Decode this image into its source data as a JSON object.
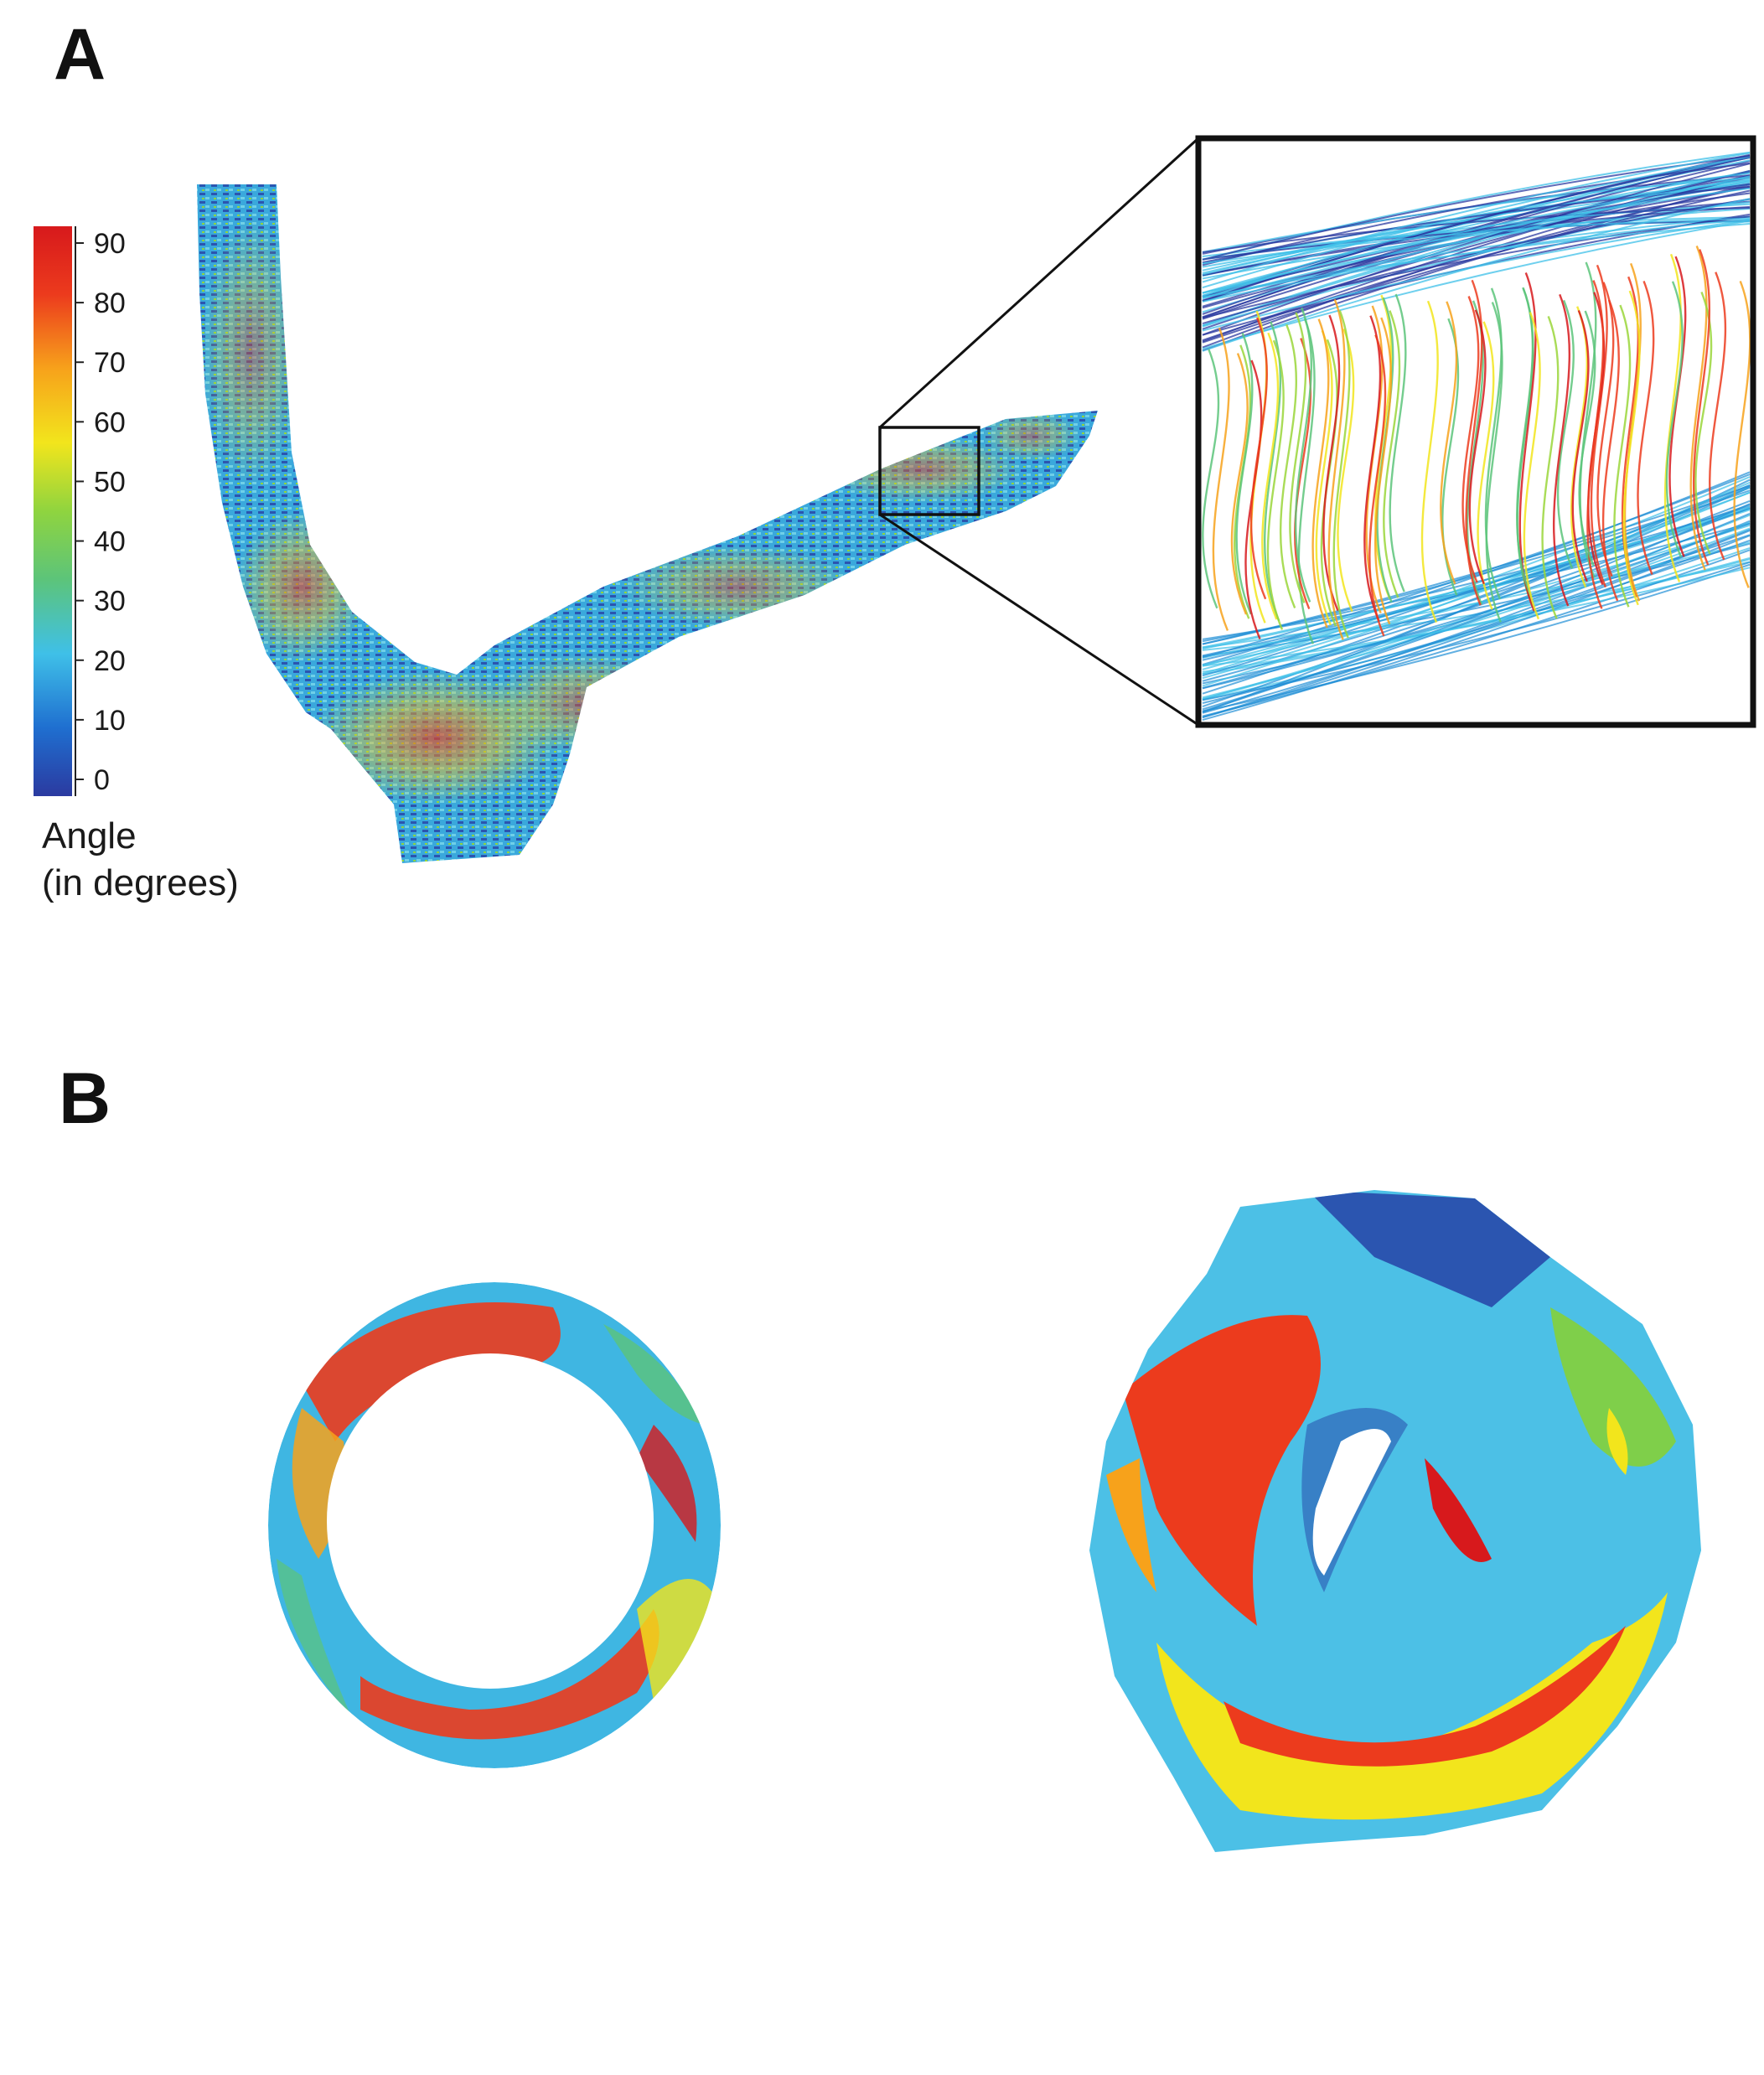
{
  "panels": {
    "a": {
      "label": "A"
    },
    "b": {
      "label": "B"
    }
  },
  "colorbar": {
    "title_line1": "Angle",
    "title_line2": "(in degrees)",
    "ticks": [
      "90",
      "80",
      "70",
      "60",
      "50",
      "40",
      "30",
      "20",
      "10",
      "0"
    ],
    "min": 0,
    "max": 90,
    "colors": [
      "#2b3aa0",
      "#1f8fd6",
      "#3fc0e8",
      "#5cc47a",
      "#9ad63a",
      "#f2e51c",
      "#f7a21b",
      "#ec3b1d",
      "#d7191c"
    ]
  }
}
